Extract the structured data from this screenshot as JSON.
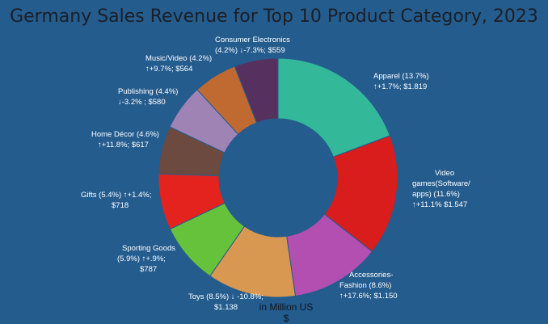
{
  "chart_data": {
    "type": "pie",
    "title": "Germany Sales Revenue for Top 10 Product Category, 2023",
    "unit_label_line1": "in Million US",
    "unit_label_line2": "$",
    "slices": [
      {
        "name": "Apparel",
        "share_pct": 13.7,
        "change": "↑+1.7%",
        "revenue": "$1.819",
        "color": "#33b89a",
        "line1": "Apparel (13.7%)",
        "line2": "↑+1.7%; $1.819",
        "line3": "",
        "line4": ""
      },
      {
        "name": "Video games(Software/apps)",
        "share_pct": 11.6,
        "change": "↑+11.1%",
        "revenue": "$1.547",
        "color": "#d91c1c",
        "line1": "Video",
        "line2": "games(Software/",
        "line3": "apps) (11.6%)",
        "line4": "↑+11.1% $1.547"
      },
      {
        "name": "Accessories-Fashion",
        "share_pct": 8.6,
        "change": "↑+17.6%",
        "revenue": "$1.150",
        "color": "#b34fb0",
        "line1": "Accessories-",
        "line2": "Fashion (8.6%)",
        "line3": "↑+17.6%; $1.150",
        "line4": ""
      },
      {
        "name": "Toys",
        "share_pct": 8.5,
        "change": "↓ -10.8%",
        "revenue": "$1.138",
        "color": "#d99852",
        "line1": "Toys (8.5%) ↓ -10.8%;",
        "line2": "$1.138",
        "line3": "",
        "line4": ""
      },
      {
        "name": "Sporting Goods",
        "share_pct": 5.9,
        "change": "↑+.9%",
        "revenue": "$787",
        "color": "#66c23a",
        "line1": "Sporting Goods",
        "line2": "(5.9%)  ↑+.9%;",
        "line3": "$787",
        "line4": ""
      },
      {
        "name": "Gifts",
        "share_pct": 5.4,
        "change": "↑+1.4%",
        "revenue": "$718",
        "color": "#e4231f",
        "line1": "Gifts (5.4%)  ↑+1.4%;",
        "line2": "$718",
        "line3": "",
        "line4": ""
      },
      {
        "name": "Home Décor",
        "share_pct": 4.6,
        "change": "↑+11.8%",
        "revenue": "$617",
        "color": "#6c4a3f",
        "line1": "Home Décor (4.6%)",
        "line2": "↑+11.8%; $617",
        "line3": "",
        "line4": ""
      },
      {
        "name": "Publishing",
        "share_pct": 4.4,
        "change": "↓-3.2%",
        "revenue": "$580",
        "color": "#9f83b5",
        "line1": "Publishing (4.4%)",
        "line2": "↓-3.2%  ; $580",
        "line3": "",
        "line4": ""
      },
      {
        "name": "Music/Video",
        "share_pct": 4.2,
        "change": "↑+9.7%",
        "revenue": "$564",
        "color": "#c06a32",
        "line1": "Music/Video (4.2%)",
        "line2": "↑+9.7%; $564",
        "line3": "",
        "line4": ""
      },
      {
        "name": "Consumer Electronics",
        "share_pct": 4.2,
        "change": "↓-7.3%",
        "revenue": "$559",
        "color": "#56305e",
        "line1": "Consumer Electronics",
        "line2": "(4.2%)  ↓-7.3%; $559",
        "line3": "",
        "line4": ""
      }
    ]
  }
}
